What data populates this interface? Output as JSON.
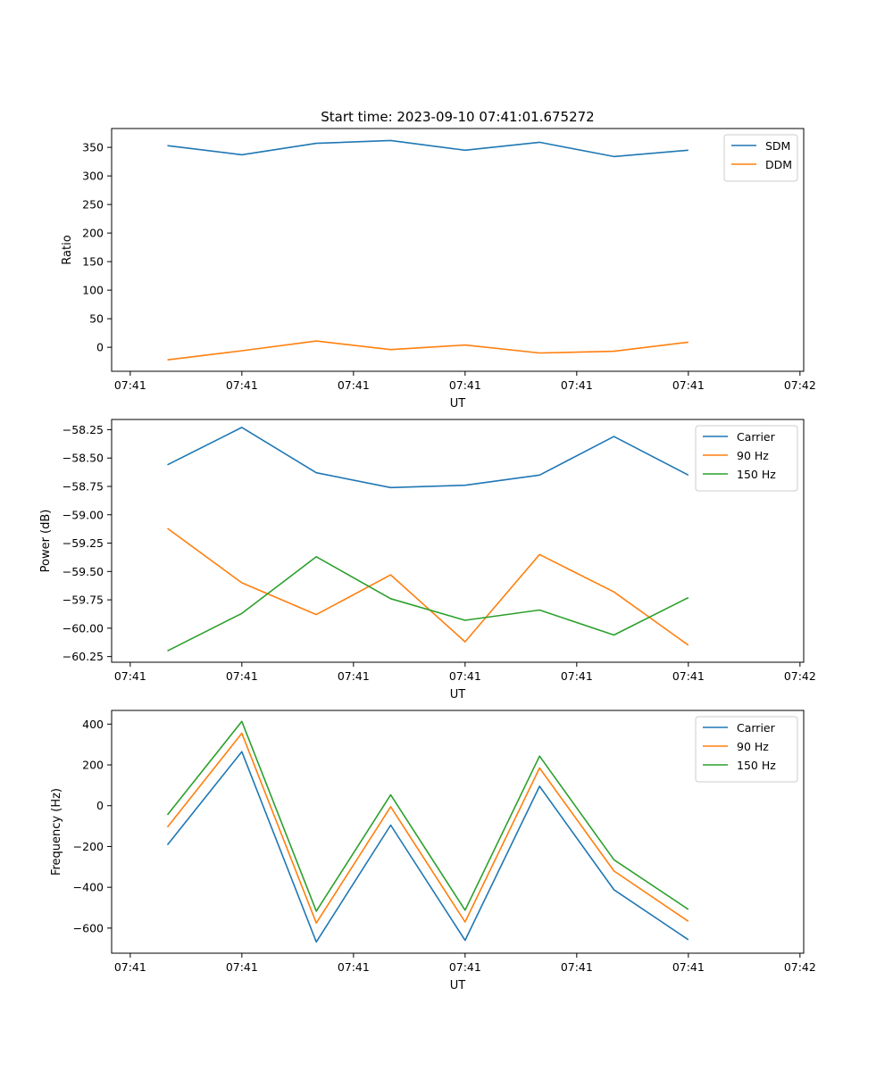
{
  "chart_data": [
    {
      "type": "line",
      "title": "Start time: 2023-09-10 07:41:01.675272",
      "xlabel": "UT",
      "ylabel": "Ratio",
      "x": [
        1,
        2,
        3,
        4,
        5,
        6,
        7,
        8
      ],
      "xlim": [
        0.25,
        9.55
      ],
      "xticks": [
        0.5,
        2,
        3.5,
        5,
        6.5,
        8,
        9.5
      ],
      "xtick_labels": [
        "07:41",
        "07:41",
        "07:41",
        "07:41",
        "07:41",
        "07:41",
        "07:42"
      ],
      "ylim": [
        -42,
        383
      ],
      "yticks": [
        0,
        50,
        100,
        150,
        200,
        250,
        300,
        350
      ],
      "ytick_labels": [
        "0",
        "50",
        "100",
        "150",
        "200",
        "250",
        "300",
        "350"
      ],
      "legend_position": "top-right",
      "series": [
        {
          "name": "SDM",
          "color": "#1f77b4",
          "values": [
            353,
            337,
            357,
            362,
            345,
            359,
            334,
            345
          ]
        },
        {
          "name": "DDM",
          "color": "#ff7f0e",
          "values": [
            -22,
            -6,
            11,
            -4,
            4,
            -10,
            -7,
            9
          ]
        }
      ]
    },
    {
      "type": "line",
      "title": "",
      "xlabel": "UT",
      "ylabel": "Power (dB)",
      "x": [
        1,
        2,
        3,
        4,
        5,
        6,
        7,
        8
      ],
      "xlim": [
        0.25,
        9.55
      ],
      "xticks": [
        0.5,
        2,
        3.5,
        5,
        6.5,
        8,
        9.5
      ],
      "xtick_labels": [
        "07:41",
        "07:41",
        "07:41",
        "07:41",
        "07:41",
        "07:41",
        "07:42"
      ],
      "ylim": [
        -60.3,
        -58.16
      ],
      "yticks": [
        -60.25,
        -60.0,
        -59.75,
        -59.5,
        -59.25,
        -59.0,
        -58.75,
        -58.5,
        -58.25
      ],
      "ytick_labels": [
        "−60.25",
        "−60.00",
        "−59.75",
        "−59.50",
        "−59.25",
        "−59.00",
        "−58.75",
        "−58.50",
        "−58.25"
      ],
      "legend_position": "top-right",
      "series": [
        {
          "name": "Carrier",
          "color": "#1f77b4",
          "values": [
            -58.56,
            -58.23,
            -58.63,
            -58.76,
            -58.74,
            -58.65,
            -58.31,
            -58.65
          ]
        },
        {
          "name": "90 Hz",
          "color": "#ff7f0e",
          "values": [
            -59.12,
            -59.6,
            -59.88,
            -59.53,
            -60.12,
            -59.35,
            -59.68,
            -60.15
          ]
        },
        {
          "name": "150 Hz",
          "color": "#2ca02c",
          "values": [
            -60.2,
            -59.87,
            -59.37,
            -59.74,
            -59.93,
            -59.84,
            -60.06,
            -59.73
          ]
        }
      ]
    },
    {
      "type": "line",
      "title": "",
      "xlabel": "UT",
      "ylabel": "Frequency (Hz)",
      "x": [
        1,
        2,
        3,
        4,
        5,
        6,
        7,
        8
      ],
      "xlim": [
        0.25,
        9.55
      ],
      "xticks": [
        0.5,
        2,
        3.5,
        5,
        6.5,
        8,
        9.5
      ],
      "xtick_labels": [
        "07:41",
        "07:41",
        "07:41",
        "07:41",
        "07:41",
        "07:41",
        "07:42"
      ],
      "ylim": [
        -723,
        467
      ],
      "yticks": [
        -600,
        -400,
        -200,
        0,
        200,
        400
      ],
      "ytick_labels": [
        "−600",
        "−400",
        "−200",
        "0",
        "200",
        "400"
      ],
      "legend_position": "top-right",
      "series": [
        {
          "name": "Carrier",
          "color": "#1f77b4",
          "values": [
            -192,
            265,
            -668,
            -95,
            -660,
            95,
            -412,
            -657
          ]
        },
        {
          "name": "90 Hz",
          "color": "#ff7f0e",
          "values": [
            -105,
            355,
            -575,
            -5,
            -570,
            185,
            -320,
            -567
          ]
        },
        {
          "name": "150 Hz",
          "color": "#2ca02c",
          "values": [
            -45,
            413,
            -517,
            53,
            -512,
            243,
            -265,
            -508
          ]
        }
      ]
    }
  ]
}
